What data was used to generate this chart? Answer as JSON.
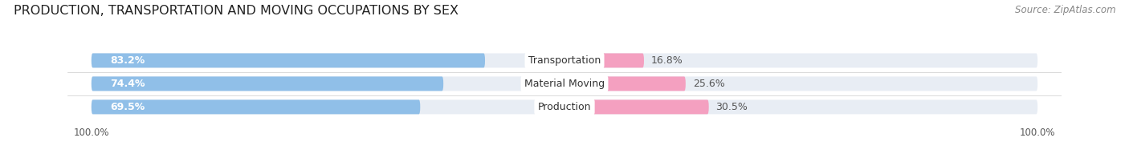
{
  "title": "PRODUCTION, TRANSPORTATION AND MOVING OCCUPATIONS BY SEX",
  "source_text": "Source: ZipAtlas.com",
  "categories": [
    "Transportation",
    "Material Moving",
    "Production"
  ],
  "male_values": [
    83.2,
    74.4,
    69.5
  ],
  "female_values": [
    16.8,
    25.6,
    30.5
  ],
  "male_color_top": "#7eb8e8",
  "male_color": "#90bfe8",
  "female_color_top": "#f480a0",
  "female_color": "#f4a0c0",
  "bar_bg_color": "#e8edf4",
  "title_fontsize": 11.5,
  "source_fontsize": 8.5,
  "bar_label_fontsize": 9,
  "category_fontsize": 9,
  "pct_label_fontsize": 9,
  "axis_label_fontsize": 8.5,
  "legend_fontsize": 9,
  "background_color": "#ffffff",
  "bar_height": 0.62,
  "bar_spacing": 1.0,
  "xlim": [
    -105,
    105
  ]
}
